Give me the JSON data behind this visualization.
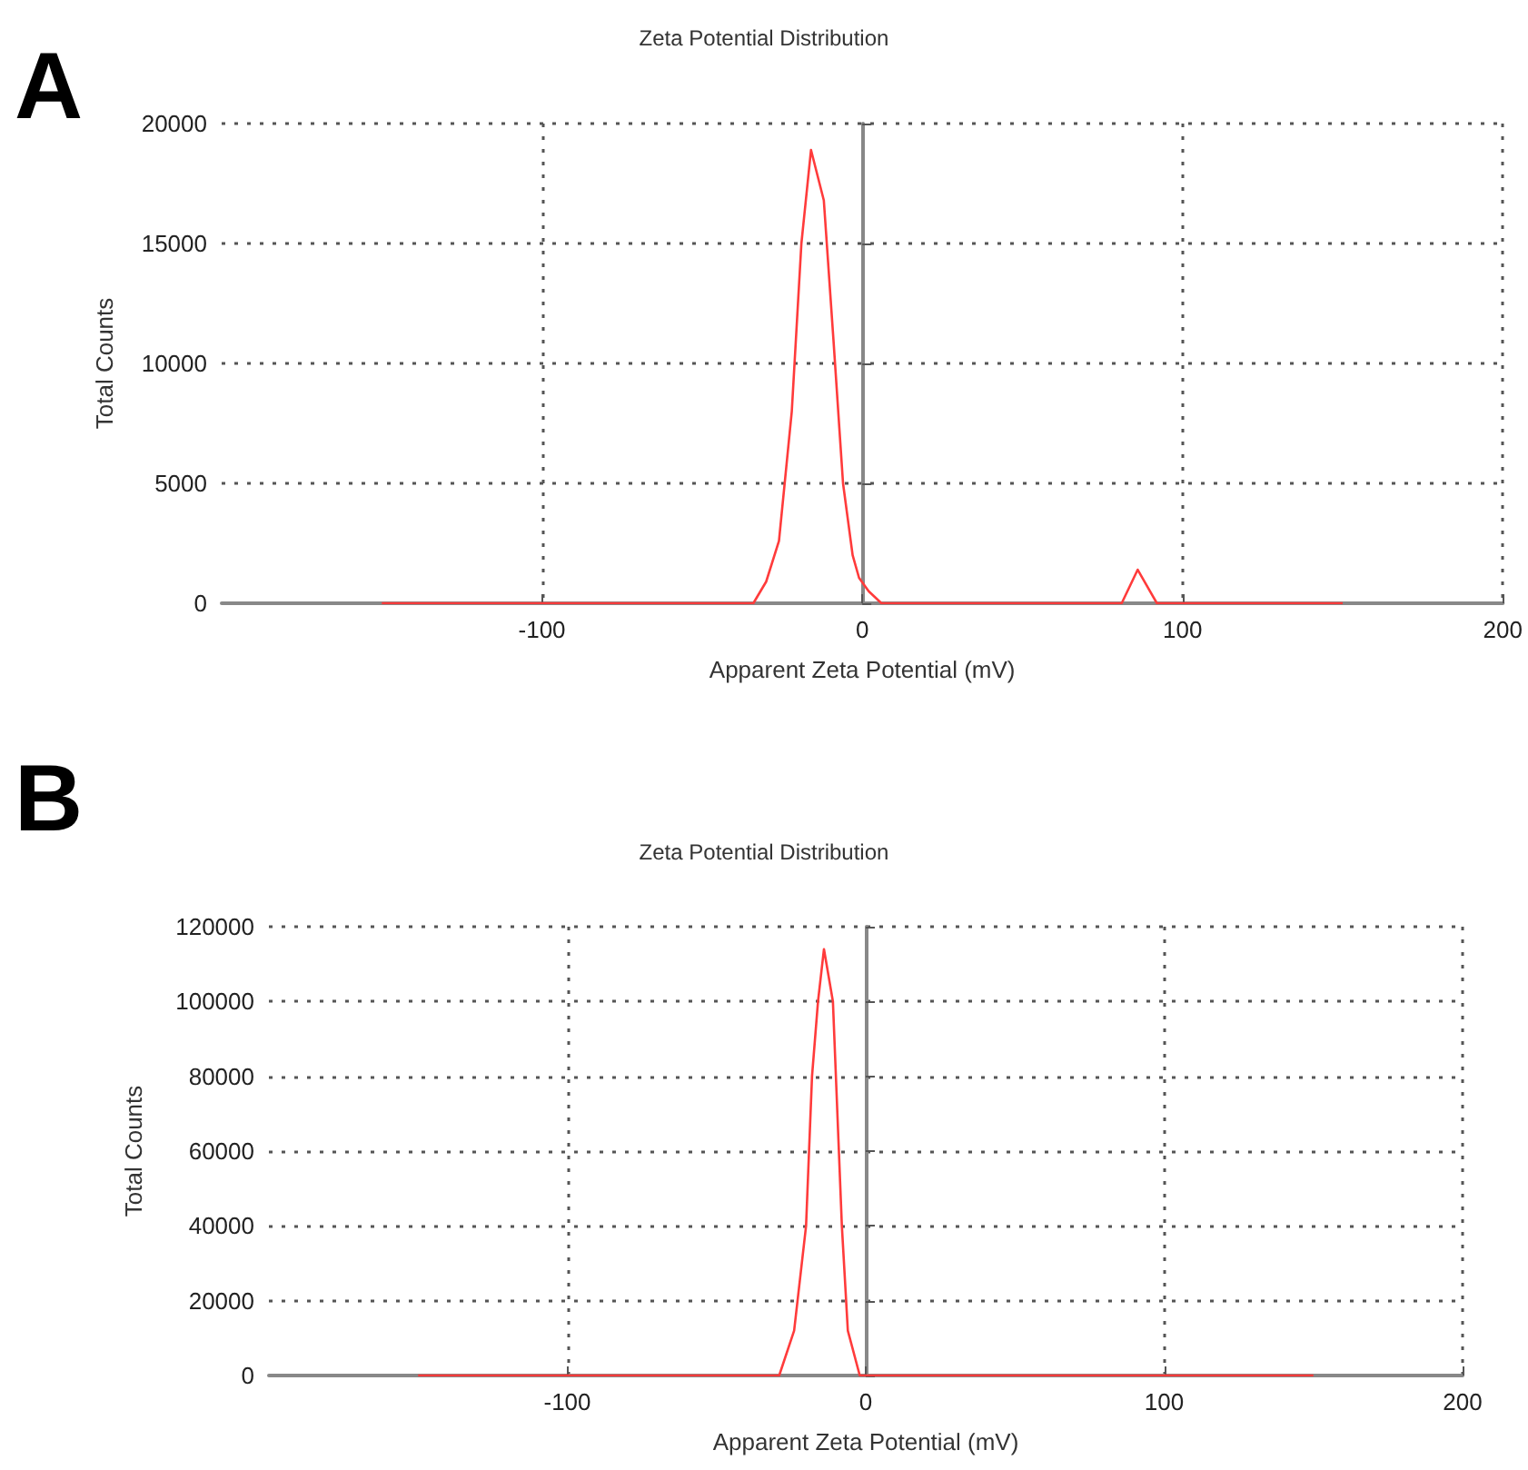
{
  "chart_data": [
    {
      "type": "line",
      "title": "Zeta Potential Distribution",
      "xlabel": "Apparent Zeta Potential (mV)",
      "ylabel": "Total Counts",
      "annotations": [
        "A"
      ],
      "x": [
        -150,
        -34,
        -30,
        -26,
        -22,
        -19,
        -16,
        -12,
        -9,
        -6,
        -3,
        -1,
        2,
        6,
        81,
        86,
        92,
        150
      ],
      "series": [
        {
          "color": "#ff3b3b",
          "values": [
            0,
            0,
            900,
            2600,
            8000,
            15000,
            18900,
            16800,
            11000,
            5000,
            2000,
            1060,
            500,
            0,
            0,
            1400,
            0,
            0
          ]
        }
      ],
      "xlim": [
        -200,
        200
      ],
      "xticks": [
        -100,
        0,
        100,
        200
      ],
      "ylim": [
        0,
        20000
      ],
      "yticks": [
        0,
        5000,
        10000,
        15000,
        20000
      ],
      "grid": true
    },
    {
      "type": "line",
      "title": "Zeta Potential Distribution",
      "xlabel": "Apparent Zeta Potential (mV)",
      "ylabel": "Total Counts",
      "annotations": [
        "B"
      ],
      "x": [
        -150,
        -29,
        -24,
        -20,
        -18,
        -16,
        -14,
        -11,
        -8,
        -6,
        -2,
        150
      ],
      "series": [
        {
          "color": "#ff3b3b",
          "values": [
            0,
            0,
            12000,
            40000,
            80000,
            100000,
            114000,
            100000,
            40000,
            12000,
            0,
            0
          ]
        }
      ],
      "xlim": [
        -200,
        200
      ],
      "xticks": [
        -100,
        0,
        100,
        200
      ],
      "ylim": [
        0,
        120000
      ],
      "yticks": [
        0,
        20000,
        40000,
        60000,
        80000,
        100000,
        120000
      ],
      "grid": true
    }
  ]
}
